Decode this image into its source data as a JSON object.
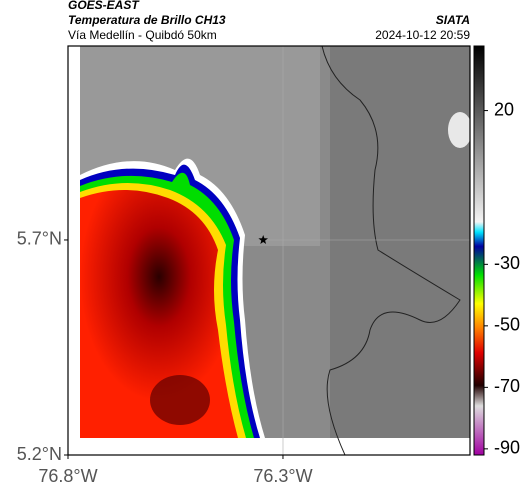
{
  "chart_data": {
    "type": "map",
    "title": "GOES-EAST",
    "subtitle": "Temperatura de Brillo CH13",
    "location": "Vía Medellín - Quibdó 50km",
    "source": "SIATA",
    "datetime": "2024-10-12 20:59",
    "xlim": [
      -76.8,
      -75.865
    ],
    "ylim": [
      5.2,
      6.151
    ],
    "xticks": [
      {
        "value": -76.8,
        "label": "76.8°W"
      },
      {
        "value": -76.3,
        "label": "76.3°W"
      }
    ],
    "yticks": [
      {
        "value": 5.7,
        "label": "5.7°N"
      },
      {
        "value": 5.2,
        "label": "5.2°N"
      }
    ],
    "marker": {
      "x": -76.346,
      "y": 5.7
    },
    "colorbar": {
      "lim": [
        -92,
        41
      ],
      "ticks": [
        20,
        -30,
        -50,
        -70,
        -90
      ]
    }
  }
}
